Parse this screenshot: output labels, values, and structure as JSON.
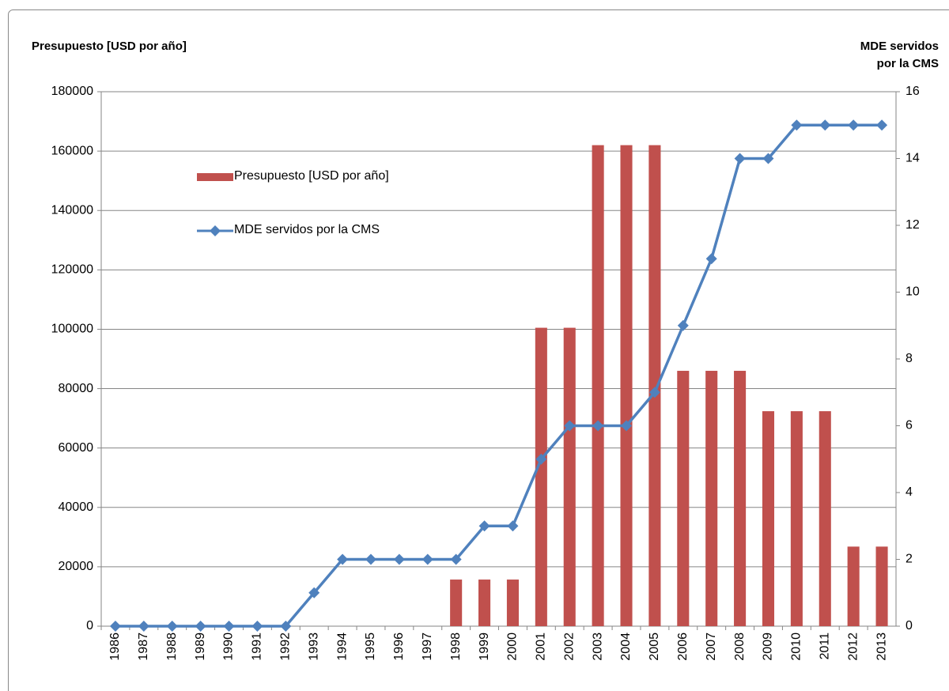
{
  "chart_data": {
    "type": "combo",
    "y_label": "Presupuesto [USD por año]",
    "y2_label": "MDE servidos por la CMS",
    "categories": [
      "1986",
      "1987",
      "1988",
      "1989",
      "1990",
      "1991",
      "1992",
      "1993",
      "1994",
      "1995",
      "1996",
      "1997",
      "1998",
      "1999",
      "2000",
      "2001",
      "2002",
      "2003",
      "2004",
      "2005",
      "2006",
      "2007",
      "2008",
      "2009",
      "2010",
      "2011",
      "2012",
      "2013"
    ],
    "series": [
      {
        "name": "Presupuesto [USD por año]",
        "type": "bar",
        "color": "#c0504d",
        "values": [
          0,
          0,
          0,
          0,
          0,
          0,
          0,
          0,
          0,
          0,
          0,
          0,
          15700,
          15700,
          15700,
          100500,
          100500,
          162000,
          162000,
          162000,
          86000,
          86000,
          86000,
          72400,
          72400,
          72400,
          26800,
          26800
        ]
      },
      {
        "name": "MDE servidos por la CMS",
        "type": "line",
        "axis": "y2",
        "color": "#4f81bd",
        "values": [
          0,
          0,
          0,
          0,
          0,
          0,
          0,
          1,
          2,
          2,
          2,
          2,
          2,
          3,
          3,
          5,
          6,
          6,
          6,
          7,
          9,
          11,
          14,
          14,
          15,
          15,
          15,
          15
        ]
      }
    ],
    "ylim": [
      0,
      180000
    ],
    "yticks": [
      0,
      20000,
      40000,
      60000,
      80000,
      100000,
      120000,
      140000,
      160000,
      180000
    ],
    "y2lim": [
      0,
      16
    ],
    "y2ticks": [
      0,
      2,
      4,
      6,
      8,
      10,
      12,
      14,
      16
    ],
    "grid": true
  }
}
